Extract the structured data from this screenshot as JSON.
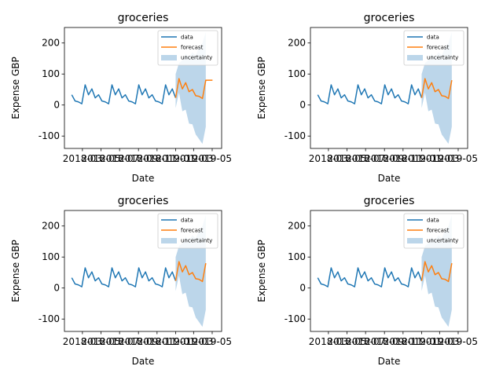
{
  "chart_data": [
    {
      "type": "line",
      "title": "groceries",
      "xlabel": "Date",
      "ylabel": "Expense GBP",
      "ylim": [
        -140,
        250
      ],
      "yticks": [
        -100,
        0,
        100,
        200
      ],
      "x_range": [
        "2018-01",
        "2019-06"
      ],
      "xtick_labels": [
        "2018-03",
        "2018-05",
        "2018-07",
        "2018-09",
        "2018-11",
        "2019-01",
        "2019-03",
        "2019-05"
      ],
      "legend": {
        "position": "upper right",
        "entries": [
          "data",
          "forecast",
          "uncertainty"
        ]
      },
      "colors": {
        "data": "#1f77b4",
        "forecast": "#ff7f0e",
        "uncertainty": "#bcd6ea"
      },
      "series": [
        {
          "name": "data",
          "x": [
            "2018-01-25",
            "2018-02-05",
            "2018-02-16",
            "2018-02-27",
            "2018-03-10",
            "2018-03-21",
            "2018-04-01",
            "2018-04-12",
            "2018-04-23",
            "2018-05-04",
            "2018-05-15",
            "2018-05-26",
            "2018-06-06",
            "2018-06-17",
            "2018-06-28",
            "2018-07-09",
            "2018-07-20",
            "2018-07-31",
            "2018-08-11",
            "2018-08-22",
            "2018-09-02",
            "2018-09-13",
            "2018-09-24",
            "2018-10-05",
            "2018-10-16",
            "2018-10-27",
            "2018-11-07",
            "2018-11-18",
            "2018-11-29",
            "2018-12-10",
            "2018-12-21",
            "2019-01-01"
          ],
          "values": [
            33,
            13,
            10,
            4,
            65,
            33,
            52,
            23,
            33,
            13,
            10,
            4,
            65,
            33,
            52,
            23,
            33,
            13,
            10,
            4,
            65,
            33,
            52,
            23,
            33,
            13,
            10,
            4,
            65,
            33,
            52,
            23
          ]
        },
        {
          "name": "forecast",
          "x": [
            "2019-01-01",
            "2019-01-12",
            "2019-01-23",
            "2019-02-03",
            "2019-02-14",
            "2019-02-25",
            "2019-03-08",
            "2019-03-19",
            "2019-03-30",
            "2019-04-10",
            "2019-04-21",
            "2019-05-02"
          ],
          "values": [
            23,
            85,
            52,
            72,
            43,
            50,
            30,
            28,
            21,
            80,
            80,
            80
          ]
        }
      ],
      "uncertainty": {
        "name": "uncertainty",
        "x": [
          "2019-01-01",
          "2019-01-12",
          "2019-01-23",
          "2019-02-03",
          "2019-02-14",
          "2019-02-25",
          "2019-03-08",
          "2019-03-19",
          "2019-03-30",
          "2019-04-10"
        ],
        "lower": [
          -10,
          40,
          -20,
          -15,
          -60,
          -62,
          -95,
          -110,
          -125,
          -70
        ],
        "upper": [
          100,
          135,
          145,
          165,
          155,
          170,
          160,
          185,
          200,
          235
        ]
      }
    },
    {
      "type": "line",
      "title": "groceries",
      "xlabel": "Date",
      "ylabel": "Expense GBP",
      "ylim": [
        -140,
        250
      ],
      "yticks": [
        -100,
        0,
        100,
        200
      ],
      "x_range": [
        "2018-01",
        "2019-06"
      ],
      "xtick_labels": [
        "2018-03",
        "2018-05",
        "2018-07",
        "2018-09",
        "2018-11",
        "2019-01",
        "2019-03",
        "2019-05"
      ],
      "legend": {
        "position": "upper right",
        "entries": [
          "data",
          "forecast",
          "uncertainty"
        ]
      },
      "colors": {
        "data": "#1f77b4",
        "forecast": "#ff7f0e",
        "uncertainty": "#bcd6ea"
      },
      "series": [
        {
          "name": "data",
          "x": [
            "2018-01-25",
            "2018-02-05",
            "2018-02-16",
            "2018-02-27",
            "2018-03-10",
            "2018-03-21",
            "2018-04-01",
            "2018-04-12",
            "2018-04-23",
            "2018-05-04",
            "2018-05-15",
            "2018-05-26",
            "2018-06-06",
            "2018-06-17",
            "2018-06-28",
            "2018-07-09",
            "2018-07-20",
            "2018-07-31",
            "2018-08-11",
            "2018-08-22",
            "2018-09-02",
            "2018-09-13",
            "2018-09-24",
            "2018-10-05",
            "2018-10-16",
            "2018-10-27",
            "2018-11-07",
            "2018-11-18",
            "2018-11-29",
            "2018-12-10",
            "2018-12-21",
            "2019-01-01"
          ],
          "values": [
            33,
            13,
            10,
            4,
            65,
            33,
            52,
            23,
            33,
            13,
            10,
            4,
            65,
            33,
            52,
            23,
            33,
            13,
            10,
            4,
            65,
            33,
            52,
            23,
            33,
            13,
            10,
            4,
            65,
            33,
            52,
            23
          ]
        },
        {
          "name": "forecast",
          "x": [
            "2019-01-01",
            "2019-01-12",
            "2019-01-23",
            "2019-02-03",
            "2019-02-14",
            "2019-02-25",
            "2019-03-08",
            "2019-03-19",
            "2019-03-30",
            "2019-04-10"
          ],
          "values": [
            23,
            85,
            52,
            72,
            43,
            50,
            30,
            28,
            21,
            80
          ]
        }
      ],
      "uncertainty": {
        "name": "uncertainty",
        "x": [
          "2019-01-01",
          "2019-01-12",
          "2019-01-23",
          "2019-02-03",
          "2019-02-14",
          "2019-02-25",
          "2019-03-08",
          "2019-03-19",
          "2019-03-30",
          "2019-04-10"
        ],
        "lower": [
          -10,
          40,
          -20,
          -15,
          -60,
          -62,
          -95,
          -110,
          -125,
          -70
        ],
        "upper": [
          100,
          135,
          145,
          165,
          155,
          170,
          160,
          185,
          200,
          235
        ]
      }
    },
    {
      "type": "line",
      "title": "groceries",
      "xlabel": "Date",
      "ylabel": "Expense GBP",
      "ylim": [
        -140,
        250
      ],
      "yticks": [
        -100,
        0,
        100,
        200
      ],
      "x_range": [
        "2018-01",
        "2019-06"
      ],
      "xtick_labels": [
        "2018-03",
        "2018-05",
        "2018-07",
        "2018-09",
        "2018-11",
        "2019-01",
        "2019-03",
        "2019-05"
      ],
      "legend": {
        "position": "upper right",
        "entries": [
          "data",
          "forecast",
          "uncertainty"
        ]
      },
      "colors": {
        "data": "#1f77b4",
        "forecast": "#ff7f0e",
        "uncertainty": "#bcd6ea"
      },
      "series": [
        {
          "name": "data",
          "x": [
            "2018-01-25",
            "2018-02-05",
            "2018-02-16",
            "2018-02-27",
            "2018-03-10",
            "2018-03-21",
            "2018-04-01",
            "2018-04-12",
            "2018-04-23",
            "2018-05-04",
            "2018-05-15",
            "2018-05-26",
            "2018-06-06",
            "2018-06-17",
            "2018-06-28",
            "2018-07-09",
            "2018-07-20",
            "2018-07-31",
            "2018-08-11",
            "2018-08-22",
            "2018-09-02",
            "2018-09-13",
            "2018-09-24",
            "2018-10-05",
            "2018-10-16",
            "2018-10-27",
            "2018-11-07",
            "2018-11-18",
            "2018-11-29",
            "2018-12-10",
            "2018-12-21",
            "2019-01-01"
          ],
          "values": [
            33,
            13,
            10,
            4,
            65,
            33,
            52,
            23,
            33,
            13,
            10,
            4,
            65,
            33,
            52,
            23,
            33,
            13,
            10,
            4,
            65,
            33,
            52,
            23,
            33,
            13,
            10,
            4,
            65,
            33,
            52,
            23
          ]
        },
        {
          "name": "forecast",
          "x": [
            "2019-01-01",
            "2019-01-12",
            "2019-01-23",
            "2019-02-03",
            "2019-02-14",
            "2019-02-25",
            "2019-03-08",
            "2019-03-19",
            "2019-03-30",
            "2019-04-10"
          ],
          "values": [
            23,
            85,
            52,
            72,
            43,
            50,
            30,
            28,
            21,
            80
          ]
        }
      ],
      "uncertainty": {
        "name": "uncertainty",
        "x": [
          "2019-01-01",
          "2019-01-12",
          "2019-01-23",
          "2019-02-03",
          "2019-02-14",
          "2019-02-25",
          "2019-03-08",
          "2019-03-19",
          "2019-03-30",
          "2019-04-10"
        ],
        "lower": [
          -10,
          40,
          -20,
          -15,
          -60,
          -62,
          -95,
          -110,
          -125,
          -70
        ],
        "upper": [
          100,
          135,
          145,
          165,
          155,
          170,
          160,
          185,
          200,
          235
        ]
      }
    },
    {
      "type": "line",
      "title": "groceries",
      "xlabel": "Date",
      "ylabel": "Expense GBP",
      "ylim": [
        -140,
        250
      ],
      "yticks": [
        -100,
        0,
        100,
        200
      ],
      "x_range": [
        "2018-01",
        "2019-06"
      ],
      "xtick_labels": [
        "2018-03",
        "2018-05",
        "2018-07",
        "2018-09",
        "2018-11",
        "2019-01",
        "2019-03",
        "2019-05"
      ],
      "legend": {
        "position": "upper right",
        "entries": [
          "data",
          "forecast",
          "uncertainty"
        ]
      },
      "colors": {
        "data": "#1f77b4",
        "forecast": "#ff7f0e",
        "uncertainty": "#bcd6ea"
      },
      "series": [
        {
          "name": "data",
          "x": [
            "2018-01-25",
            "2018-02-05",
            "2018-02-16",
            "2018-02-27",
            "2018-03-10",
            "2018-03-21",
            "2018-04-01",
            "2018-04-12",
            "2018-04-23",
            "2018-05-04",
            "2018-05-15",
            "2018-05-26",
            "2018-06-06",
            "2018-06-17",
            "2018-06-28",
            "2018-07-09",
            "2018-07-20",
            "2018-07-31",
            "2018-08-11",
            "2018-08-22",
            "2018-09-02",
            "2018-09-13",
            "2018-09-24",
            "2018-10-05",
            "2018-10-16",
            "2018-10-27",
            "2018-11-07",
            "2018-11-18",
            "2018-11-29",
            "2018-12-10",
            "2018-12-21",
            "2019-01-01"
          ],
          "values": [
            33,
            13,
            10,
            4,
            65,
            33,
            52,
            23,
            33,
            13,
            10,
            4,
            65,
            33,
            52,
            23,
            33,
            13,
            10,
            4,
            65,
            33,
            52,
            23,
            33,
            13,
            10,
            4,
            65,
            33,
            52,
            23
          ]
        },
        {
          "name": "forecast",
          "x": [
            "2019-01-01",
            "2019-01-12",
            "2019-01-23",
            "2019-02-03",
            "2019-02-14",
            "2019-02-25",
            "2019-03-08",
            "2019-03-19",
            "2019-03-30",
            "2019-04-10"
          ],
          "values": [
            23,
            85,
            52,
            72,
            43,
            50,
            30,
            28,
            21,
            80
          ]
        }
      ],
      "uncertainty": {
        "name": "uncertainty",
        "x": [
          "2019-01-01",
          "2019-01-12",
          "2019-01-23",
          "2019-02-03",
          "2019-02-14",
          "2019-02-25",
          "2019-03-08",
          "2019-03-19",
          "2019-03-30",
          "2019-04-10"
        ],
        "lower": [
          -10,
          40,
          -20,
          -15,
          -60,
          -62,
          -95,
          -110,
          -125,
          -70
        ],
        "upper": [
          100,
          135,
          145,
          165,
          155,
          170,
          160,
          185,
          200,
          235
        ]
      }
    }
  ]
}
